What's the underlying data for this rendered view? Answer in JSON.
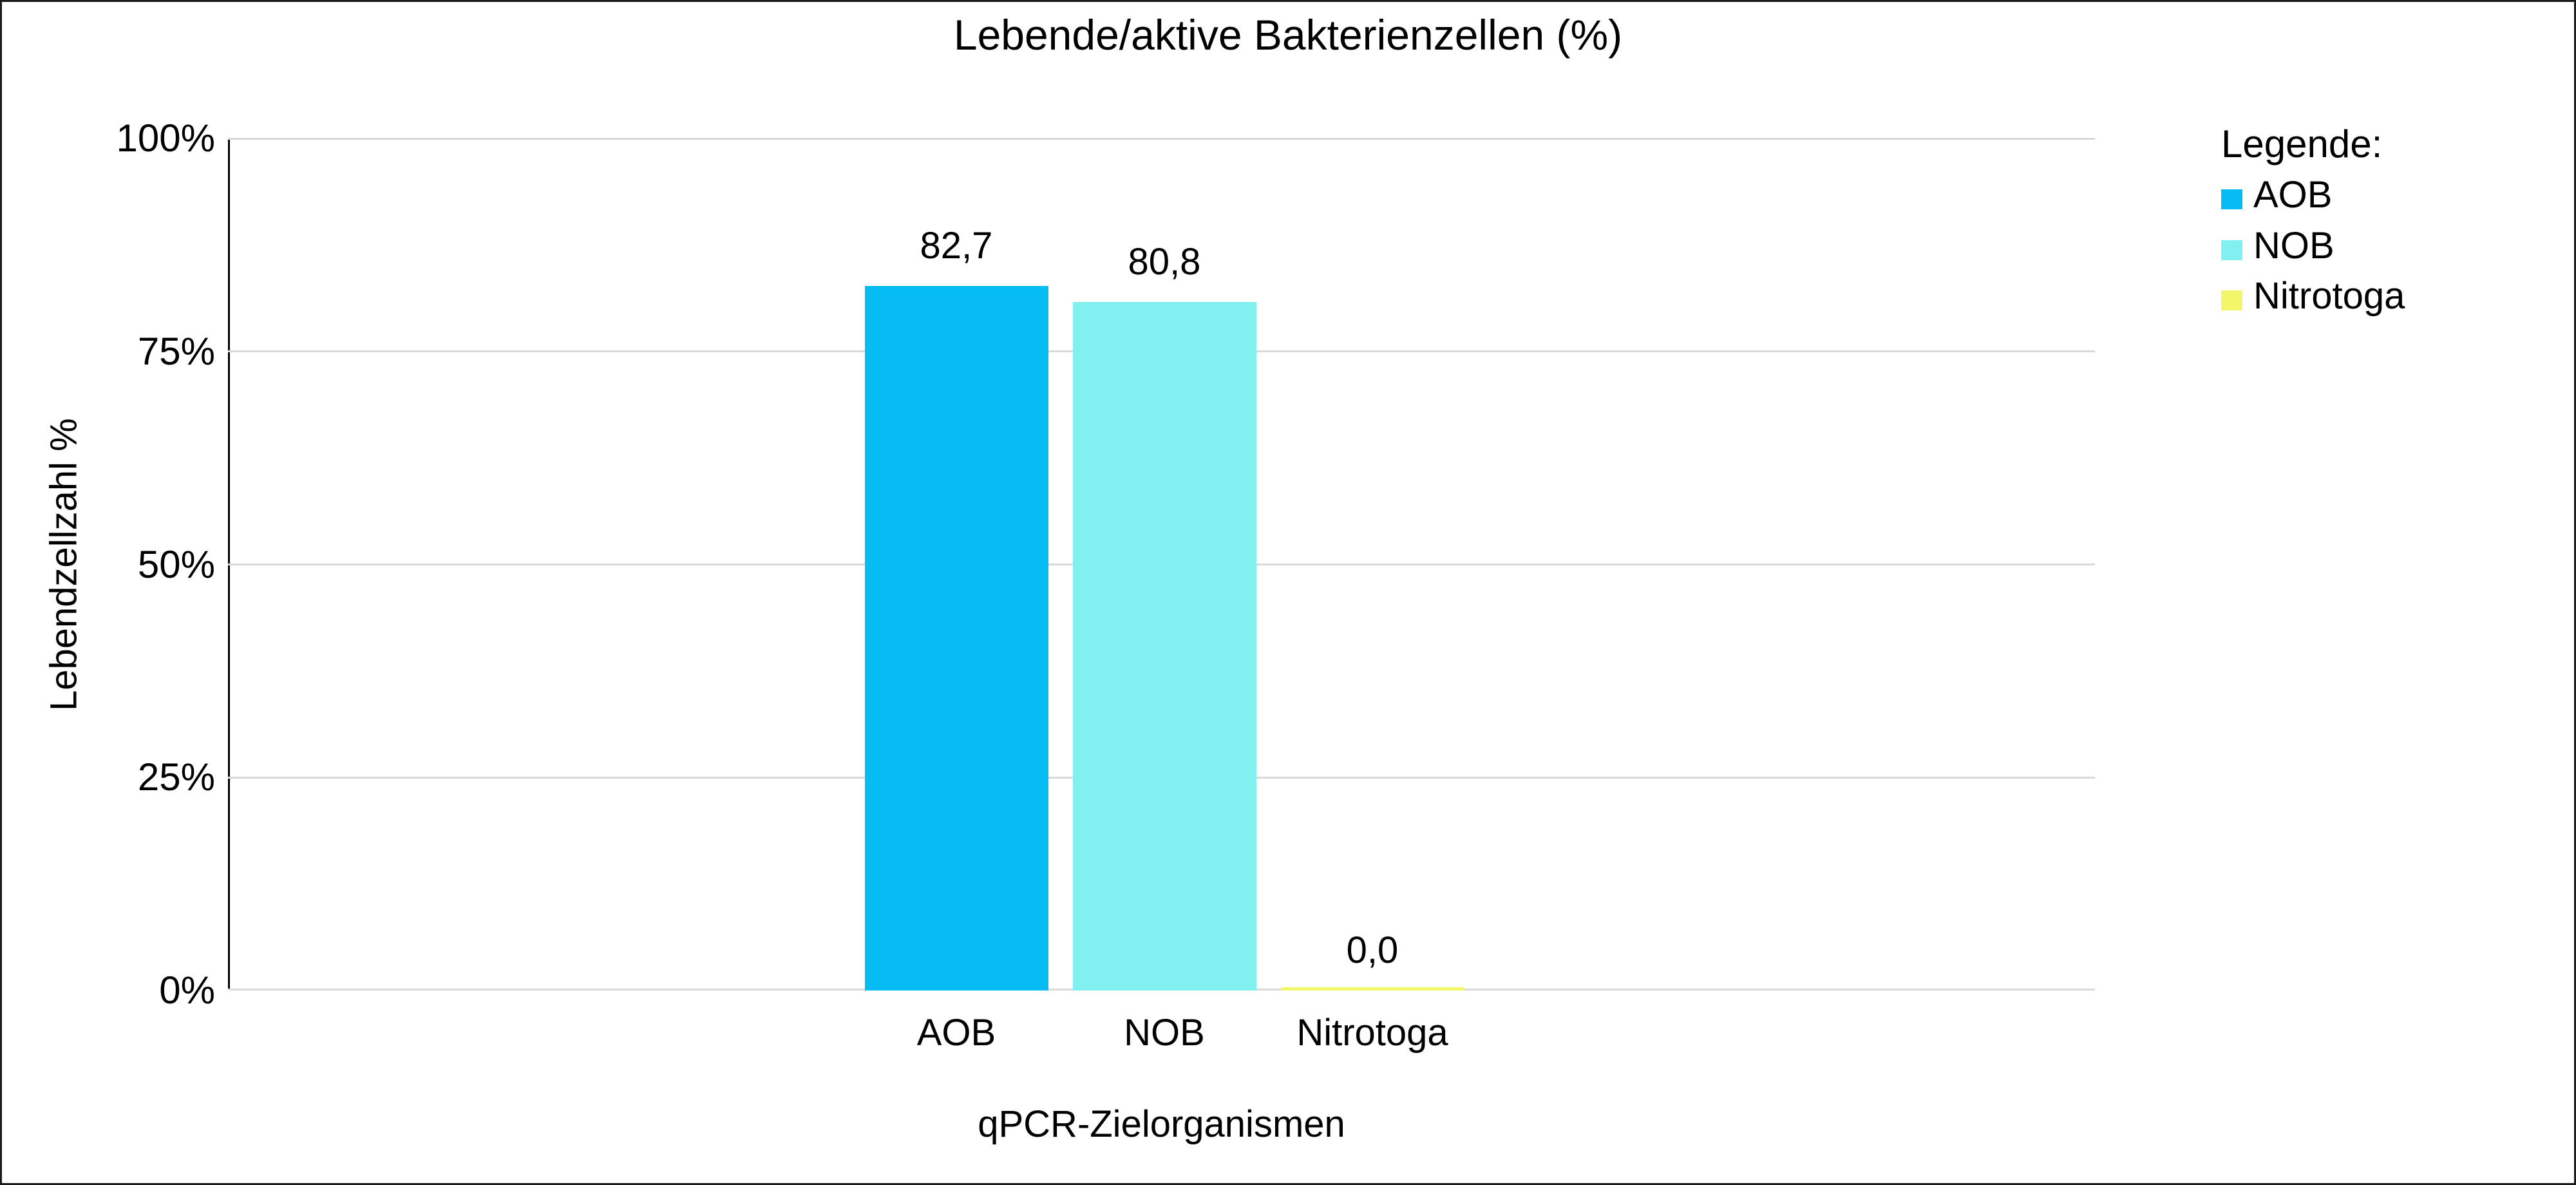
{
  "figure": {
    "background": "#ffffff",
    "border_color": "#1a1a1a"
  },
  "chart_data": {
    "type": "bar",
    "title": "Lebende/aktive Bakterienzellen (%)",
    "categories": [
      "AOB",
      "NOB",
      "Nitrotoga"
    ],
    "values": [
      82.7,
      80.8,
      0.0
    ],
    "value_labels": [
      "82,7",
      "80,8",
      "0,0"
    ],
    "bar_colors": [
      "#06bcf2",
      "#80f0f0",
      "#f4f669"
    ],
    "xlabel": "qPCR-Zielorganismen",
    "ylabel": "Lebendzellzahl %",
    "ylim": [
      0,
      100
    ],
    "yticks": [
      0,
      25,
      50,
      75,
      100
    ],
    "ytick_labels": [
      "0%",
      "25%",
      "50%",
      "75%",
      "100%"
    ],
    "grid": true,
    "gridline_color": "#d9d9d9",
    "axis_line_color": "#000000",
    "legend_position": "right"
  },
  "legend": {
    "title": "Legende:",
    "items": [
      {
        "label": "AOB",
        "color": "#06bcf2"
      },
      {
        "label": "NOB",
        "color": "#80f0f0"
      },
      {
        "label": "Nitrotoga",
        "color": "#f4f669"
      }
    ]
  }
}
